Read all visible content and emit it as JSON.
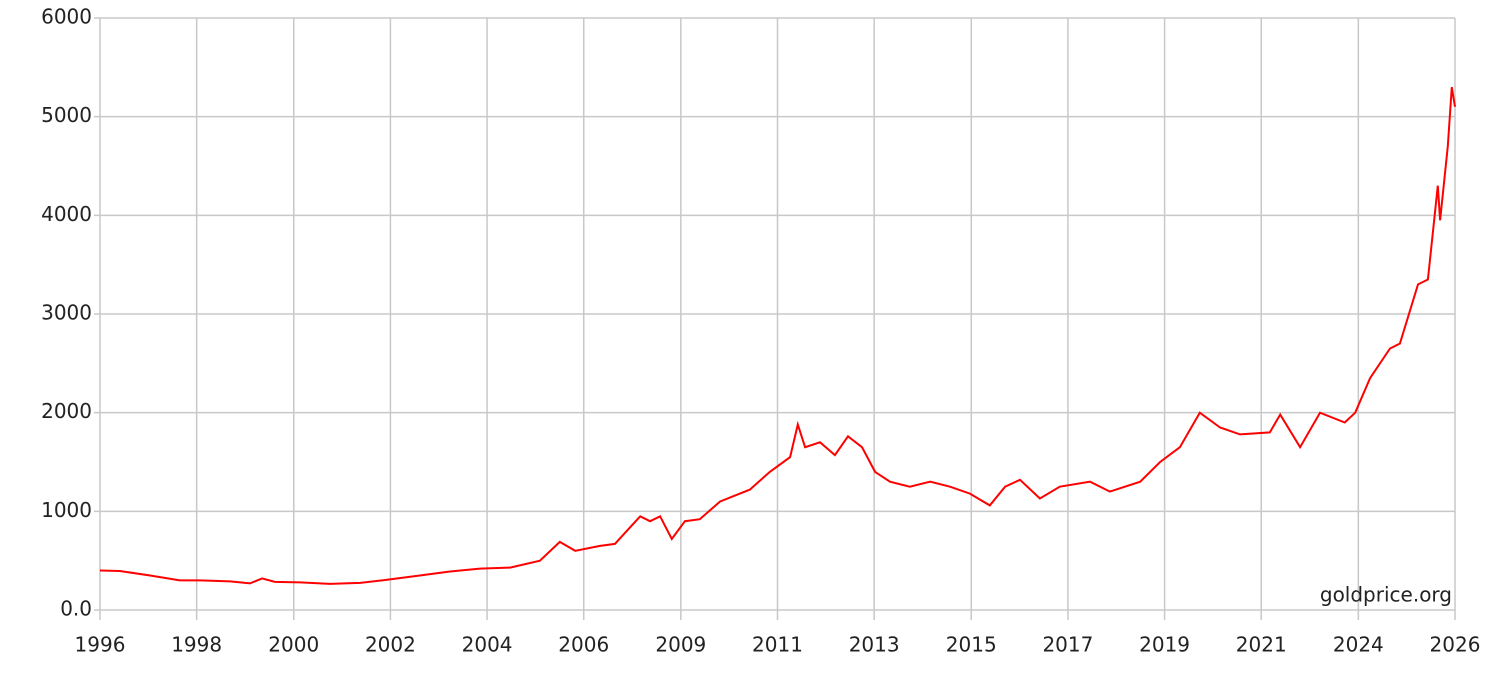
{
  "chart_data": {
    "type": "line",
    "watermark": "goldprice.org",
    "x": [
      1996.0,
      1996.44,
      1997.11,
      1997.77,
      1998.21,
      1998.88,
      1999.32,
      1999.59,
      1999.87,
      2000.43,
      2001.09,
      2001.76,
      2002.42,
      2003.08,
      2003.75,
      2004.41,
      2005.08,
      2005.74,
      2006.18,
      2006.52,
      2007.07,
      2007.4,
      2007.96,
      2008.18,
      2008.4,
      2008.66,
      2008.95,
      2009.28,
      2009.73,
      2010.39,
      2010.83,
      2011.28,
      2011.45,
      2011.61,
      2011.94,
      2012.27,
      2012.56,
      2012.87,
      2013.16,
      2013.49,
      2013.93,
      2014.38,
      2014.82,
      2015.26,
      2015.7,
      2016.04,
      2016.37,
      2016.81,
      2017.25,
      2017.92,
      2018.36,
      2019.03,
      2019.47,
      2019.91,
      2020.35,
      2020.8,
      2021.24,
      2021.9,
      2022.13,
      2022.57,
      2023.01,
      2023.56,
      2023.79,
      2024.12,
      2024.56,
      2024.78,
      2025.18,
      2025.4,
      2025.62,
      2025.67,
      2025.84,
      2025.93,
      2026.0
    ],
    "series": [
      {
        "name": "Gold price",
        "color": "#ff0000",
        "values": [
          400,
          395,
          350,
          300,
          300,
          290,
          270,
          320,
          285,
          280,
          265,
          275,
          310,
          350,
          390,
          420,
          430,
          500,
          690,
          600,
          650,
          670,
          950,
          900,
          950,
          720,
          900,
          920,
          1100,
          1220,
          1400,
          1550,
          1880,
          1650,
          1700,
          1570,
          1760,
          1650,
          1400,
          1300,
          1250,
          1300,
          1250,
          1180,
          1060,
          1250,
          1320,
          1130,
          1250,
          1300,
          1200,
          1300,
          1500,
          1650,
          2000,
          1850,
          1780,
          1800,
          1980,
          1650,
          2000,
          1900,
          2000,
          2350,
          2650,
          2700,
          3300,
          3350,
          4300,
          3950,
          4700,
          5300,
          5100
        ]
      }
    ],
    "xlim": [
      1996,
      2026
    ],
    "xticks": [
      {
        "value": 1996,
        "label": "1996"
      },
      {
        "value": 1998.14,
        "label": "1998"
      },
      {
        "value": 2000.29,
        "label": "2000"
      },
      {
        "value": 2002.43,
        "label": "2002"
      },
      {
        "value": 2004.57,
        "label": "2004"
      },
      {
        "value": 2006.71,
        "label": "2006"
      },
      {
        "value": 2008.86,
        "label": "2009"
      },
      {
        "value": 2011,
        "label": "2011"
      },
      {
        "value": 2013.14,
        "label": "2013"
      },
      {
        "value": 2015.29,
        "label": "2015"
      },
      {
        "value": 2017.43,
        "label": "2017"
      },
      {
        "value": 2019.57,
        "label": "2019"
      },
      {
        "value": 2021.71,
        "label": "2021"
      },
      {
        "value": 2023.86,
        "label": "2024"
      },
      {
        "value": 2026,
        "label": "2026"
      }
    ],
    "ylim": [
      0,
      6000
    ],
    "yticks": [
      {
        "value": 0,
        "label": "0.0"
      },
      1000,
      2000,
      3000,
      4000,
      5000,
      6000
    ],
    "grid": true
  }
}
